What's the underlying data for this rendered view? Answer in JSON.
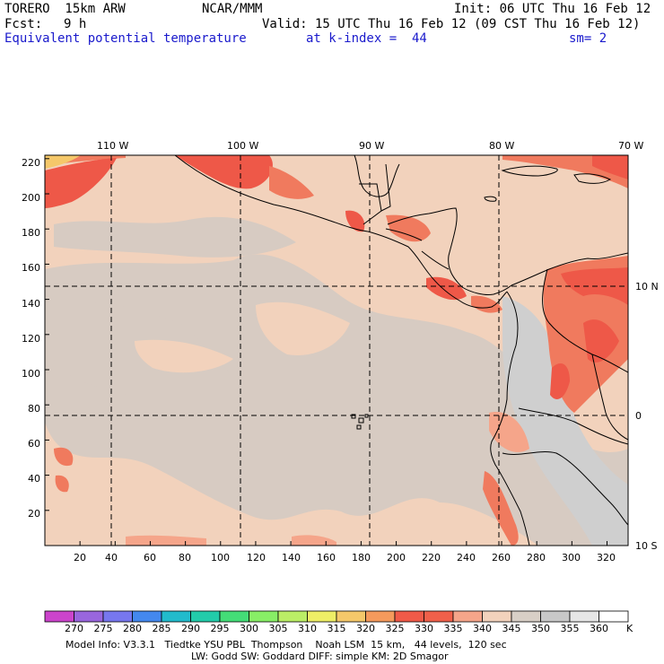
{
  "header": {
    "model": "TORERO  15km ARW",
    "org": "NCAR/MMM",
    "init": "Init: 06 UTC Thu 16 Feb 12",
    "fcst_label": "Fcst:",
    "fcst_value": "9 h",
    "valid": "Valid: 15 UTC Thu 16 Feb 12 (09 CST Thu 16 Feb 12)",
    "field": "Equivalent potential temperature",
    "level": "at k-index =  44",
    "smooth": "sm= 2"
  },
  "map": {
    "top_lon_labels": [
      "110 W",
      "100 W",
      "90 W",
      "80 W",
      "70 W"
    ],
    "right_lat_labels": [
      "10 N",
      "0",
      "10 S"
    ],
    "left_grid_labels": [
      "220",
      "200",
      "180",
      "160",
      "140",
      "120",
      "100",
      "80",
      "60",
      "40",
      "20"
    ],
    "bottom_grid_labels": [
      "20",
      "40",
      "60",
      "80",
      "100",
      "120",
      "140",
      "160",
      "180",
      "200",
      "220",
      "240",
      "260",
      "280",
      "300",
      "320"
    ]
  },
  "colorbar": {
    "levels": [
      "270",
      "275",
      "280",
      "285",
      "290",
      "295",
      "300",
      "305",
      "310",
      "315",
      "320",
      "325",
      "330",
      "335",
      "340",
      "345",
      "350",
      "355",
      "360"
    ],
    "unit": "K",
    "colors": [
      "#cc44cc",
      "#9966dd",
      "#7777ee",
      "#4488ee",
      "#22bbcc",
      "#22ccaa",
      "#44dd77",
      "#88ee66",
      "#bbee66",
      "#eeee66",
      "#f5c86a",
      "#f59a5c",
      "#f05a48",
      "#f0604a",
      "#f5a58a",
      "#f2d2bc",
      "#d8cfc6",
      "#c8c8c8",
      "#e6e6e6",
      "#ffffff"
    ]
  },
  "footer": {
    "line1": "Model Info: V3.3.1   Tiedtke YSU PBL  Thompson    Noah LSM  15 km,   44 levels,  120 sec",
    "line2": "LW: Godd SW: Goddard DIFF: simple KM: 2D Smagor"
  }
}
